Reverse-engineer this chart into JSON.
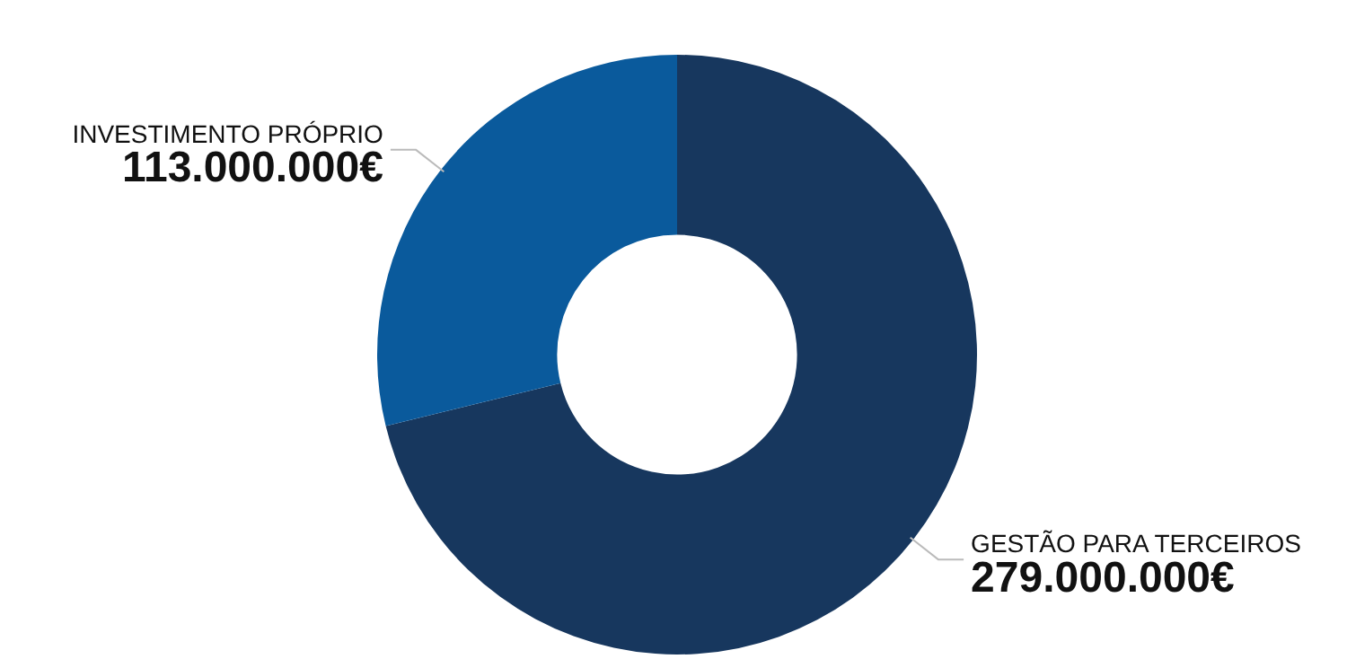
{
  "chart_data": {
    "type": "donut",
    "categories": [
      "GESTÃO PARA TERCEIROS",
      "INVESTIMENTO PRÓPRIO"
    ],
    "values": [
      279000000,
      113000000
    ],
    "colors": [
      "#17375e",
      "#0a5a9c"
    ],
    "value_labels": [
      "279.000.000€",
      "113.000.000€"
    ]
  }
}
